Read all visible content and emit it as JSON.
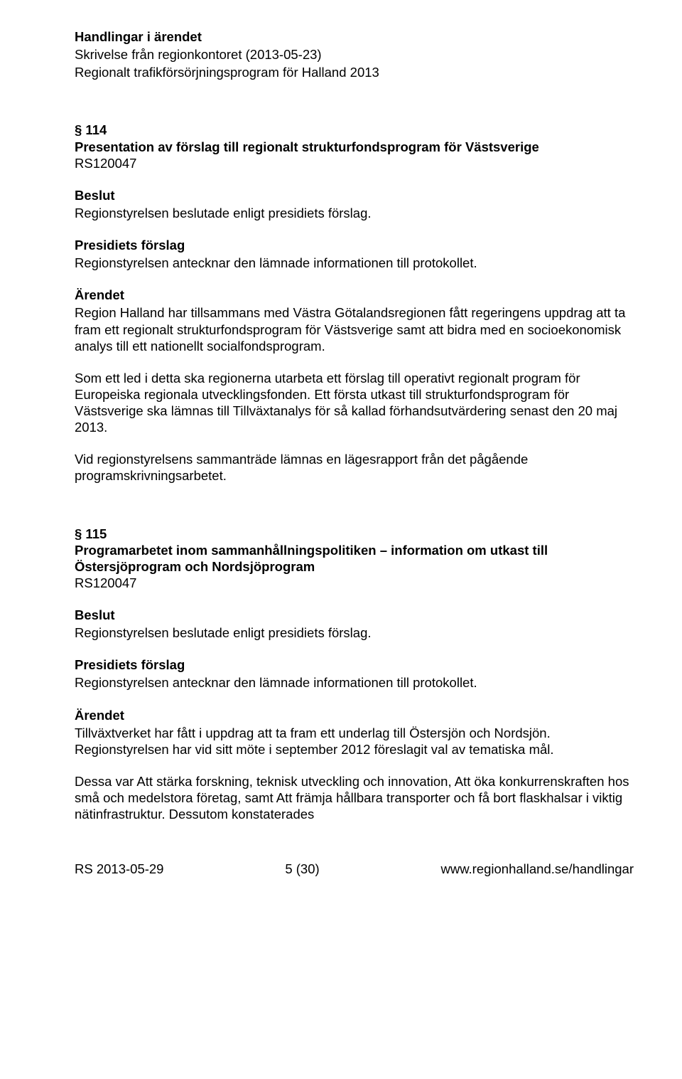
{
  "header": {
    "handlingar_label": "Handlingar i ärendet",
    "line1": "Skrivelse från regionkontoret (2013-05-23)",
    "line2": "Regionalt trafikförsörjningsprogram för Halland 2013"
  },
  "s114": {
    "num": "§ 114",
    "title": "Presentation av förslag till regionalt strukturfondsprogram för Västsverige",
    "code": "RS120047",
    "beslut_label": "Beslut",
    "beslut_text": "Regionstyrelsen beslutade enligt presidiets förslag.",
    "presidiets_label": "Presidiets förslag",
    "presidiets_text": "Regionstyrelsen antecknar den lämnade informationen till protokollet.",
    "arendet_label": "Ärendet",
    "p1": "Region Halland har tillsammans med Västra Götalandsregionen fått regeringens uppdrag att ta fram ett regionalt strukturfondsprogram för Västsverige samt att bidra med en socioekonomisk analys till ett nationellt socialfondsprogram.",
    "p2": "Som ett led i detta ska regionerna utarbeta ett förslag till operativt regionalt program för Europeiska regionala utvecklingsfonden. Ett första utkast till strukturfondsprogram för Västsverige ska lämnas till Tillväxtanalys för så kallad förhandsutvärdering senast den 20 maj 2013.",
    "p3": "Vid regionstyrelsens sammanträde lämnas en lägesrapport från det pågående programskrivningsarbetet."
  },
  "s115": {
    "num": "§ 115",
    "title": "Programarbetet inom sammanhållningspolitiken – information om utkast till Östersjöprogram och Nordsjöprogram",
    "code": "RS120047",
    "beslut_label": "Beslut",
    "beslut_text": "Regionstyrelsen beslutade enligt presidiets förslag.",
    "presidiets_label": "Presidiets förslag",
    "presidiets_text": "Regionstyrelsen antecknar den lämnade informationen till protokollet.",
    "arendet_label": "Ärendet",
    "p1": "Tillväxtverket har fått i uppdrag att ta fram ett underlag till Östersjön och Nordsjön. Regionstyrelsen har vid sitt möte i september 2012 föreslagit val av tematiska mål.",
    "p2": "Dessa var Att stärka forskning, teknisk utveckling och innovation, Att öka konkurrenskraften hos små och medelstora företag, samt Att främja hållbara transporter och få bort flaskhalsar i viktig nätinfrastruktur. Dessutom konstaterades"
  },
  "footer": {
    "left": "RS 2013-05-29",
    "center": "5 (30)",
    "right": "www.regionhalland.se/handlingar"
  }
}
